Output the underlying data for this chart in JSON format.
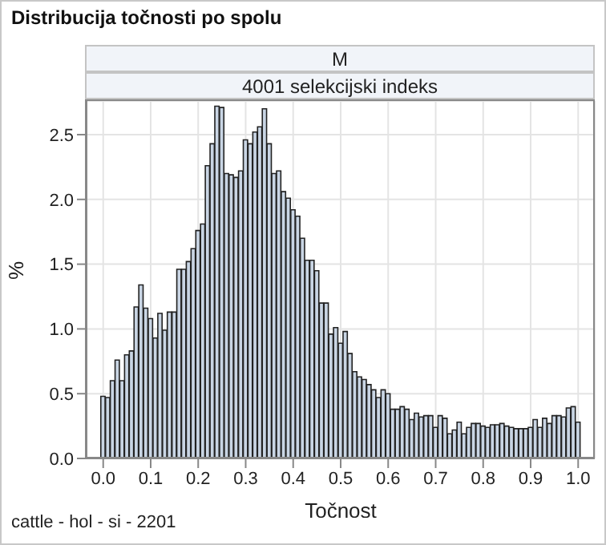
{
  "chart_data": {
    "type": "histogram",
    "title": "Distribucija točnosti po spolu",
    "subtitle": "M",
    "annotations": [
      "4001 selekcijski indeks",
      "cattle - hol - si - 2201"
    ],
    "xlabel": "Točnost",
    "ylabel": "%",
    "bins": [
      -0.005,
      0.005,
      0.015,
      0.025,
      0.035,
      0.045,
      0.055,
      0.065,
      0.075,
      0.085,
      0.095,
      0.105,
      0.115,
      0.125,
      0.135,
      0.145,
      0.155,
      0.165,
      0.175,
      0.185,
      0.195,
      0.205,
      0.215,
      0.225,
      0.235,
      0.245,
      0.255,
      0.265,
      0.275,
      0.285,
      0.295,
      0.305,
      0.315,
      0.325,
      0.335,
      0.345,
      0.355,
      0.365,
      0.375,
      0.385,
      0.395,
      0.405,
      0.415,
      0.425,
      0.435,
      0.445,
      0.455,
      0.465,
      0.475,
      0.485,
      0.495,
      0.505,
      0.515,
      0.525,
      0.535,
      0.545,
      0.555,
      0.565,
      0.575,
      0.585,
      0.595,
      0.605,
      0.615,
      0.625,
      0.635,
      0.645,
      0.655,
      0.665,
      0.675,
      0.685,
      0.695,
      0.705,
      0.715,
      0.725,
      0.735,
      0.745,
      0.755,
      0.765,
      0.775,
      0.785,
      0.795,
      0.805,
      0.815,
      0.825,
      0.835,
      0.845,
      0.855,
      0.865,
      0.875,
      0.885,
      0.895,
      0.905,
      0.915,
      0.925,
      0.935,
      0.945,
      0.955,
      0.965,
      0.975,
      0.985,
      0.995,
      1.005
    ],
    "values": [
      0.48,
      0.47,
      0.6,
      0.76,
      0.6,
      0.8,
      0.83,
      1.17,
      1.34,
      1.16,
      1.08,
      0.93,
      1.12,
      0.99,
      1.13,
      1.13,
      1.46,
      1.46,
      1.52,
      1.62,
      1.76,
      1.81,
      2.26,
      2.43,
      2.72,
      2.71,
      2.2,
      2.19,
      2.17,
      2.22,
      2.46,
      2.43,
      2.52,
      2.56,
      2.7,
      2.43,
      2.2,
      2.22,
      2.06,
      2.01,
      1.92,
      1.87,
      1.7,
      1.53,
      1.53,
      1.45,
      1.2,
      1.2,
      0.96,
      1.01,
      0.89,
      0.98,
      0.81,
      0.67,
      0.63,
      0.61,
      0.57,
      0.53,
      0.47,
      0.53,
      0.5,
      0.38,
      0.38,
      0.4,
      0.38,
      0.3,
      0.35,
      0.32,
      0.33,
      0.33,
      0.24,
      0.33,
      0.31,
      0.19,
      0.22,
      0.28,
      0.19,
      0.24,
      0.27,
      0.27,
      0.25,
      0.24,
      0.26,
      0.26,
      0.27,
      0.25,
      0.24,
      0.23,
      0.23,
      0.23,
      0.24,
      0.3,
      0.24,
      0.31,
      0.27,
      0.33,
      0.33,
      0.32,
      0.39,
      0.4,
      0.28
    ],
    "color": "#c9d5e4",
    "xlim": [
      -0.035,
      1.035
    ],
    "xticks": [
      {
        "value": 0,
        "label": "0.0"
      },
      {
        "value": 0.1,
        "label": "0.1"
      },
      {
        "value": 0.2,
        "label": "0.2"
      },
      {
        "value": 0.3,
        "label": "0.3"
      },
      {
        "value": 0.4,
        "label": "0.4"
      },
      {
        "value": 0.5,
        "label": "0.5"
      },
      {
        "value": 0.6,
        "label": "0.6"
      },
      {
        "value": 0.7,
        "label": "0.7"
      },
      {
        "value": 0.8,
        "label": "0.8"
      },
      {
        "value": 0.9,
        "label": "0.9"
      },
      {
        "value": 1,
        "label": "1.0"
      }
    ],
    "ylim": [
      0,
      2.76
    ],
    "yticks": [
      {
        "value": 0,
        "label": "0.0"
      },
      {
        "value": 0.5,
        "label": "0.5"
      },
      {
        "value": 1,
        "label": "1.0"
      },
      {
        "value": 1.5,
        "label": "1.5"
      },
      {
        "value": 2,
        "label": "2.0"
      },
      {
        "value": 2.5,
        "label": "2.5"
      }
    ],
    "grid": true
  }
}
